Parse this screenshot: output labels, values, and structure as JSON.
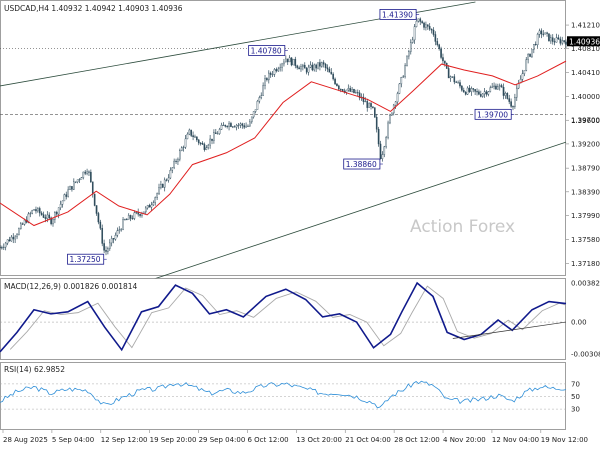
{
  "chart_data": {
    "type": "candlestick",
    "symbol_header": "USDCAD,H4  1.40932 1.40942 1.40903 1.40936",
    "watermark": "Action Forex",
    "price_panel": {
      "ylim": [
        1.37,
        1.416
      ],
      "y_ticks": [
        "1.41210",
        "1.40810",
        "1.40410",
        "1.40000",
        "1.39600",
        "1.39200",
        "1.38790",
        "1.38390",
        "1.37990",
        "1.37580",
        "1.37180"
      ],
      "current_price_label": "1.40936",
      "current_price": 1.40936,
      "horizontal_levels": [
        {
          "value": 1.4081,
          "style": "dotted"
        },
        {
          "value": 1.397,
          "style": "dashed",
          "label": "1.39700",
          "right_label": "1.39700"
        }
      ],
      "annotations": [
        {
          "label": "1.37250",
          "x_frac": 0.185,
          "price": 1.3725
        },
        {
          "label": "1.40780",
          "x_frac": 0.505,
          "price": 1.4078
        },
        {
          "label": "1.38860",
          "x_frac": 0.673,
          "price": 1.3886
        },
        {
          "label": "1.41390",
          "x_frac": 0.737,
          "price": 1.4139
        },
        {
          "label": "1.39700",
          "x_frac": 0.905,
          "price": 1.397
        }
      ],
      "channel_upper": [
        {
          "x_frac": 0.0,
          "price": 1.4018
        },
        {
          "x_frac": 0.84,
          "price": 1.416
        }
      ],
      "channel_lower": [
        {
          "x_frac": 0.0,
          "price": 1.3605
        },
        {
          "x_frac": 1.0,
          "price": 1.3923
        }
      ],
      "ma_line": [
        {
          "x_frac": 0.0,
          "price": 1.382
        },
        {
          "x_frac": 0.06,
          "price": 1.3782
        },
        {
          "x_frac": 0.12,
          "price": 1.3805
        },
        {
          "x_frac": 0.17,
          "price": 1.384
        },
        {
          "x_frac": 0.21,
          "price": 1.3815
        },
        {
          "x_frac": 0.26,
          "price": 1.38
        },
        {
          "x_frac": 0.3,
          "price": 1.3835
        },
        {
          "x_frac": 0.34,
          "price": 1.3885
        },
        {
          "x_frac": 0.4,
          "price": 1.3905
        },
        {
          "x_frac": 0.45,
          "price": 1.393
        },
        {
          "x_frac": 0.5,
          "price": 1.399
        },
        {
          "x_frac": 0.55,
          "price": 1.4025
        },
        {
          "x_frac": 0.6,
          "price": 1.401
        },
        {
          "x_frac": 0.65,
          "price": 1.3995
        },
        {
          "x_frac": 0.69,
          "price": 1.3975
        },
        {
          "x_frac": 0.73,
          "price": 1.401
        },
        {
          "x_frac": 0.78,
          "price": 1.4055
        },
        {
          "x_frac": 0.82,
          "price": 1.4045
        },
        {
          "x_frac": 0.87,
          "price": 1.4035
        },
        {
          "x_frac": 0.91,
          "price": 1.402
        },
        {
          "x_frac": 0.95,
          "price": 1.4035
        },
        {
          "x_frac": 1.0,
          "price": 1.406
        }
      ],
      "price_path": [
        {
          "x_frac": 0.0,
          "price": 1.3745
        },
        {
          "x_frac": 0.03,
          "price": 1.377
        },
        {
          "x_frac": 0.06,
          "price": 1.381
        },
        {
          "x_frac": 0.09,
          "price": 1.379
        },
        {
          "x_frac": 0.12,
          "price": 1.384
        },
        {
          "x_frac": 0.155,
          "price": 1.388
        },
        {
          "x_frac": 0.185,
          "price": 1.3735
        },
        {
          "x_frac": 0.22,
          "price": 1.379
        },
        {
          "x_frac": 0.26,
          "price": 1.381
        },
        {
          "x_frac": 0.3,
          "price": 1.387
        },
        {
          "x_frac": 0.335,
          "price": 1.394
        },
        {
          "x_frac": 0.36,
          "price": 1.3915
        },
        {
          "x_frac": 0.4,
          "price": 1.3955
        },
        {
          "x_frac": 0.44,
          "price": 1.395
        },
        {
          "x_frac": 0.47,
          "price": 1.403
        },
        {
          "x_frac": 0.505,
          "price": 1.4065
        },
        {
          "x_frac": 0.54,
          "price": 1.4045
        },
        {
          "x_frac": 0.57,
          "price": 1.4055
        },
        {
          "x_frac": 0.6,
          "price": 1.4015
        },
        {
          "x_frac": 0.63,
          "price": 1.4005
        },
        {
          "x_frac": 0.66,
          "price": 1.3975
        },
        {
          "x_frac": 0.673,
          "price": 1.3895
        },
        {
          "x_frac": 0.69,
          "price": 1.397
        },
        {
          "x_frac": 0.71,
          "price": 1.403
        },
        {
          "x_frac": 0.737,
          "price": 1.413
        },
        {
          "x_frac": 0.765,
          "price": 1.411
        },
        {
          "x_frac": 0.79,
          "price": 1.404
        },
        {
          "x_frac": 0.82,
          "price": 1.401
        },
        {
          "x_frac": 0.85,
          "price": 1.4005
        },
        {
          "x_frac": 0.88,
          "price": 1.402
        },
        {
          "x_frac": 0.905,
          "price": 1.3985
        },
        {
          "x_frac": 0.93,
          "price": 1.406
        },
        {
          "x_frac": 0.955,
          "price": 1.411
        },
        {
          "x_frac": 0.975,
          "price": 1.4095
        },
        {
          "x_frac": 1.0,
          "price": 1.4094
        }
      ]
    },
    "macd_panel": {
      "header": "MACD(12,26,9) 0.001826 0.001814",
      "ylim": [
        -0.0034,
        0.004
      ],
      "y_ticks": [
        "0.003824",
        "0.00",
        "-0.003084"
      ],
      "macd": [
        {
          "x_frac": 0.0,
          "v": -0.0029
        },
        {
          "x_frac": 0.03,
          "v": -0.001
        },
        {
          "x_frac": 0.06,
          "v": 0.0012
        },
        {
          "x_frac": 0.09,
          "v": 0.0008
        },
        {
          "x_frac": 0.12,
          "v": 0.001
        },
        {
          "x_frac": 0.155,
          "v": 0.002
        },
        {
          "x_frac": 0.185,
          "v": -0.0005
        },
        {
          "x_frac": 0.215,
          "v": -0.0027
        },
        {
          "x_frac": 0.25,
          "v": 0.001
        },
        {
          "x_frac": 0.28,
          "v": 0.0015
        },
        {
          "x_frac": 0.31,
          "v": 0.0036
        },
        {
          "x_frac": 0.34,
          "v": 0.0028
        },
        {
          "x_frac": 0.37,
          "v": 0.0008
        },
        {
          "x_frac": 0.4,
          "v": 0.0012
        },
        {
          "x_frac": 0.43,
          "v": 0.0005
        },
        {
          "x_frac": 0.47,
          "v": 0.0025
        },
        {
          "x_frac": 0.505,
          "v": 0.0032
        },
        {
          "x_frac": 0.54,
          "v": 0.0022
        },
        {
          "x_frac": 0.57,
          "v": 0.0005
        },
        {
          "x_frac": 0.6,
          "v": 0.0008
        },
        {
          "x_frac": 0.63,
          "v": 0.0
        },
        {
          "x_frac": 0.66,
          "v": -0.0025
        },
        {
          "x_frac": 0.69,
          "v": -0.0012
        },
        {
          "x_frac": 0.71,
          "v": 0.001
        },
        {
          "x_frac": 0.737,
          "v": 0.0038
        },
        {
          "x_frac": 0.765,
          "v": 0.0025
        },
        {
          "x_frac": 0.79,
          "v": -0.001
        },
        {
          "x_frac": 0.82,
          "v": -0.0017
        },
        {
          "x_frac": 0.85,
          "v": -0.0012
        },
        {
          "x_frac": 0.88,
          "v": 0.0002
        },
        {
          "x_frac": 0.905,
          "v": -0.0008
        },
        {
          "x_frac": 0.94,
          "v": 0.0012
        },
        {
          "x_frac": 0.97,
          "v": 0.002
        },
        {
          "x_frac": 1.0,
          "v": 0.0018
        }
      ],
      "signal_offset_frac": 0.018,
      "trendline": [
        {
          "x_frac": 0.8,
          "v": -0.0016
        },
        {
          "x_frac": 1.0,
          "v": 0.0
        }
      ]
    },
    "rsi_panel": {
      "header": "RSI(14) 62.9852",
      "ylim": [
        0,
        100
      ],
      "y_ticks": [
        "70",
        "50",
        "30"
      ],
      "levels": [
        70,
        50,
        30
      ],
      "values": [
        {
          "x_frac": 0.0,
          "v": 42
        },
        {
          "x_frac": 0.03,
          "v": 58
        },
        {
          "x_frac": 0.06,
          "v": 65
        },
        {
          "x_frac": 0.09,
          "v": 55
        },
        {
          "x_frac": 0.12,
          "v": 62
        },
        {
          "x_frac": 0.155,
          "v": 60
        },
        {
          "x_frac": 0.185,
          "v": 35
        },
        {
          "x_frac": 0.215,
          "v": 48
        },
        {
          "x_frac": 0.25,
          "v": 60
        },
        {
          "x_frac": 0.28,
          "v": 62
        },
        {
          "x_frac": 0.31,
          "v": 72
        },
        {
          "x_frac": 0.34,
          "v": 66
        },
        {
          "x_frac": 0.37,
          "v": 55
        },
        {
          "x_frac": 0.4,
          "v": 60
        },
        {
          "x_frac": 0.43,
          "v": 56
        },
        {
          "x_frac": 0.47,
          "v": 68
        },
        {
          "x_frac": 0.505,
          "v": 70
        },
        {
          "x_frac": 0.54,
          "v": 62
        },
        {
          "x_frac": 0.57,
          "v": 55
        },
        {
          "x_frac": 0.6,
          "v": 56
        },
        {
          "x_frac": 0.63,
          "v": 50
        },
        {
          "x_frac": 0.66,
          "v": 40
        },
        {
          "x_frac": 0.673,
          "v": 32
        },
        {
          "x_frac": 0.69,
          "v": 50
        },
        {
          "x_frac": 0.71,
          "v": 60
        },
        {
          "x_frac": 0.737,
          "v": 74
        },
        {
          "x_frac": 0.765,
          "v": 68
        },
        {
          "x_frac": 0.79,
          "v": 45
        },
        {
          "x_frac": 0.82,
          "v": 42
        },
        {
          "x_frac": 0.85,
          "v": 46
        },
        {
          "x_frac": 0.88,
          "v": 52
        },
        {
          "x_frac": 0.905,
          "v": 43
        },
        {
          "x_frac": 0.93,
          "v": 58
        },
        {
          "x_frac": 0.955,
          "v": 66
        },
        {
          "x_frac": 0.975,
          "v": 63
        },
        {
          "x_frac": 1.0,
          "v": 64
        }
      ]
    },
    "x_ticks": [
      "28 Aug 2025",
      "5 Sep 04:00",
      "12 Sep 12:00",
      "19 Sep 20:00",
      "29 Sep 04:00",
      "6 Oct 12:00",
      "13 Oct 20:00",
      "21 Oct 04:00",
      "28 Oct 12:00",
      "4 Nov 20:00",
      "12 Nov 04:00",
      "19 Nov 12:00"
    ]
  }
}
